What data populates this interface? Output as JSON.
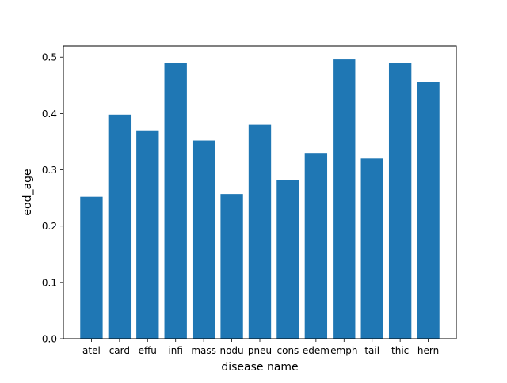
{
  "chart_data": {
    "type": "bar",
    "title": "",
    "xlabel": "disease name",
    "ylabel": "eod_age",
    "categories": [
      "atel",
      "card",
      "effu",
      "infi",
      "mass",
      "nodu",
      "pneu",
      "cons",
      "edem",
      "emph",
      "tail",
      "thic",
      "hern"
    ],
    "series": [
      {
        "name": "",
        "values": [
          0.252,
          0.398,
          0.37,
          0.49,
          0.352,
          0.257,
          0.38,
          0.282,
          0.33,
          0.496,
          0.32,
          0.49,
          0.456
        ]
      }
    ],
    "ylim": [
      0,
      0.52
    ],
    "yticks": [
      "0.0",
      "0.1",
      "0.2",
      "0.3",
      "0.4",
      "0.5"
    ],
    "bar_color": "#1f77b4",
    "grid": false,
    "legend": "none"
  }
}
